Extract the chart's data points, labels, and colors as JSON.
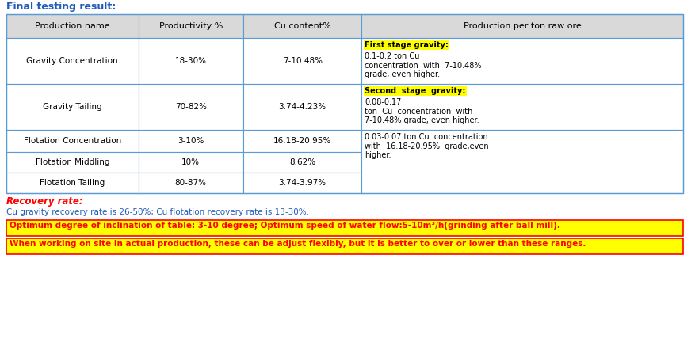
{
  "title": "Final testing result:",
  "title_color": "#1F5CBA",
  "header": [
    "Production name",
    "Productivity %",
    "Cu content%",
    "Production per ton raw ore"
  ],
  "header_bg": "#D9D9D9",
  "rows": [
    {
      "name": "Gravity Concentration",
      "productivity": "18-30%",
      "cu_content": "7-10.48%"
    },
    {
      "name": "Gravity Tailing",
      "productivity": "70-82%",
      "cu_content": "3.74-4.23%"
    },
    {
      "name": "Flotation Concentration",
      "productivity": "3-10%",
      "cu_content": "16.18-20.95%"
    },
    {
      "name": "Flotation Middling",
      "productivity": "10%",
      "cu_content": "8.62%"
    },
    {
      "name": "Flotation Tailing",
      "productivity": "80-87%",
      "cu_content": "3.74-3.97%"
    }
  ],
  "col3_row0_highlight": "First stage gravity:",
  "col3_row0_rest": "0.1-0.2 ton Cu\nconcentration  with  7-10.48%\ngrade, even higher.",
  "col3_row1_highlight": "Second  stage  gravity:",
  "col3_row1_rest": "0.08-0.17\nton  Cu  concentration  with\n7-10.48% grade, even higher.",
  "col3_row234": "0.03-0.07 ton Cu  concentration\nwith  16.18-20.95%  grade,even\nhigher.",
  "recovery_label": "Recovery rate:",
  "recovery_text": "Cu gravity recovery rate is 26-50%; Cu flotation recovery rate is 13-30%.",
  "optimum_text": "Optimum degree of inclination of table: 3-10 degree; Optimum speed of water flow:5-10m³/h(grinding after ball mill).",
  "when_text": "When working on site in actual production, these can be adjust flexibly, but it is better to over or lower than these ranges.",
  "bg_color": "#FFFFFF",
  "border_color": "#5B9BD5",
  "highlight_yellow": "#FFFF00",
  "text_color_blue": "#1F5CBA",
  "text_color_red": "#FF0000",
  "text_color_black": "#000000",
  "cell_bg_header": "#D9D9D9",
  "title_fontsize": 9,
  "header_fontsize": 8,
  "cell_fontsize": 7.5,
  "small_fontsize": 7
}
